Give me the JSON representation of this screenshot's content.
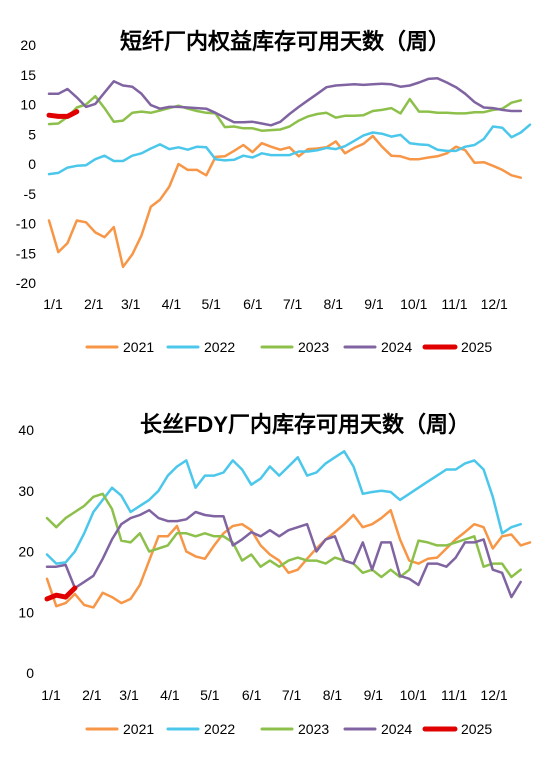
{
  "chart_data": [
    {
      "type": "line",
      "title": "短纤厂内权益库存可用天数（周）",
      "xlabel": "",
      "ylabel": "",
      "x_range": [
        0,
        52
      ],
      "ylim": [
        -20,
        20
      ],
      "yticks": [
        20,
        15,
        10,
        5,
        0,
        -5,
        -10,
        -15,
        -20
      ],
      "xticks": [
        {
          "label": "1/1",
          "x": 0
        },
        {
          "label": "2/1",
          "x": 4.4
        },
        {
          "label": "3/1",
          "x": 8.4
        },
        {
          "label": "4/1",
          "x": 12.8
        },
        {
          "label": "5/1",
          "x": 17.1
        },
        {
          "label": "6/1",
          "x": 21.6
        },
        {
          "label": "7/1",
          "x": 25.9
        },
        {
          "label": "8/1",
          "x": 30.3
        },
        {
          "label": "9/1",
          "x": 34.7
        },
        {
          "label": "10/1",
          "x": 39.0
        },
        {
          "label": "11/1",
          "x": 43.4
        },
        {
          "label": "12/1",
          "x": 47.7
        }
      ],
      "grid": false,
      "legend": "bottom",
      "series": [
        {
          "name": "2021",
          "color": "#F79646",
          "width": 2.5,
          "values": [
            -9.5,
            -14.8,
            -13.3,
            -9.5,
            -9.8,
            -11.5,
            -12.3,
            -10.6,
            -17.3,
            -15.2,
            -12,
            -7.2,
            -6,
            -3.8,
            0,
            -1,
            -1,
            -1.9,
            1.2,
            1.3,
            2.2,
            3.2,
            2,
            3.5,
            2.9,
            2.4,
            2.8,
            1.3,
            2.5,
            2.6,
            2.8,
            3.8,
            1.8,
            2.7,
            3.4,
            4.7,
            2.9,
            1.4,
            1.3,
            0.8,
            0.8,
            1.1,
            1.3,
            1.8,
            2.9,
            2.3,
            0.2,
            0.3,
            -0.3,
            -1,
            -1.9,
            -2.3
          ]
        },
        {
          "name": "2022",
          "color": "#4BC7EB",
          "width": 2.5,
          "values": [
            -1.7,
            -1.5,
            -0.6,
            -0.3,
            -0.2,
            0.8,
            1.4,
            0.5,
            0.5,
            1.4,
            1.8,
            2.6,
            3.3,
            2.5,
            2.8,
            2.4,
            2.9,
            2.8,
            0.8,
            0.6,
            0.7,
            1.4,
            1.1,
            1.8,
            1.5,
            1.5,
            1.5,
            2.1,
            2.1,
            2.3,
            2.7,
            2.5,
            3,
            3.9,
            4.8,
            5.3,
            5.1,
            4.6,
            4.9,
            3.5,
            3.3,
            3.2,
            2.4,
            2.2,
            2.2,
            2.9,
            3.2,
            4.2,
            6.3,
            6.1,
            4.5,
            5.3,
            6.6
          ]
        },
        {
          "name": "2023",
          "color": "#8DC04B",
          "width": 2.5,
          "values": [
            6.7,
            6.8,
            7.9,
            9.5,
            10,
            11.4,
            9.4,
            7.1,
            7.3,
            8.6,
            8.8,
            8.6,
            9,
            9.4,
            9.8,
            9.3,
            8.9,
            8.6,
            8.5,
            6.2,
            6.3,
            6,
            6,
            5.6,
            5.7,
            5.8,
            6.3,
            7.3,
            8,
            8.4,
            8.6,
            7.8,
            8.1,
            8.1,
            8.2,
            8.9,
            9.1,
            9.4,
            8.5,
            10.9,
            8.8,
            8.8,
            8.6,
            8.6,
            8.5,
            8.5,
            8.7,
            8.7,
            9.1,
            9.3,
            10.3,
            10.7
          ]
        },
        {
          "name": "2024",
          "color": "#8064A2",
          "width": 2.5,
          "values": [
            11.8,
            11.8,
            12.6,
            11.2,
            9.6,
            10.1,
            12,
            13.9,
            13.2,
            13,
            11.8,
            9.9,
            9.3,
            9.6,
            9.6,
            9.5,
            9.4,
            9.3,
            8.6,
            7.8,
            7,
            7,
            7.1,
            6.8,
            6.5,
            7.1,
            8.4,
            9.6,
            10.7,
            11.8,
            12.9,
            13.2,
            13.3,
            13.4,
            13.3,
            13.4,
            13.5,
            13.4,
            13,
            13.2,
            13.7,
            14.3,
            14.4,
            13.7,
            12.9,
            11.8,
            10.4,
            9.5,
            9.4,
            9.1,
            8.9,
            8.9
          ]
        },
        {
          "name": "2025",
          "color": "#E00000",
          "width": 5,
          "values": [
            8.2,
            8,
            8,
            8.8
          ]
        }
      ]
    },
    {
      "type": "line",
      "title": "长丝FDY厂内库存可用天数（周）",
      "xlabel": "",
      "ylabel": "",
      "x_range": [
        0,
        52
      ],
      "ylim": [
        0,
        40
      ],
      "yticks": [
        40,
        30,
        20,
        10,
        0
      ],
      "xticks": [
        {
          "label": "1/1",
          "x": 0
        },
        {
          "label": "2/1",
          "x": 4.4
        },
        {
          "label": "3/1",
          "x": 8.4
        },
        {
          "label": "4/1",
          "x": 12.8
        },
        {
          "label": "5/1",
          "x": 17.1
        },
        {
          "label": "6/1",
          "x": 21.6
        },
        {
          "label": "7/1",
          "x": 25.9
        },
        {
          "label": "8/1",
          "x": 30.3
        },
        {
          "label": "9/1",
          "x": 34.7
        },
        {
          "label": "10/1",
          "x": 39.0
        },
        {
          "label": "11/1",
          "x": 43.4
        },
        {
          "label": "12/1",
          "x": 47.7
        }
      ],
      "grid": false,
      "legend": "bottom",
      "series": [
        {
          "name": "2021",
          "color": "#F79646",
          "width": 2.5,
          "values": [
            15.5,
            11,
            11.5,
            13,
            11.2,
            10.8,
            13.2,
            12.5,
            11.5,
            12.2,
            14.5,
            18.5,
            22.5,
            22.5,
            24.2,
            20,
            19.2,
            18.8,
            21,
            23,
            24.2,
            24.5,
            23.5,
            21,
            19.5,
            18.5,
            16.5,
            17,
            18.8,
            20.5,
            22,
            23.2,
            24.5,
            26,
            24,
            24.5,
            25.5,
            26.8,
            22,
            18.5,
            18,
            18.8,
            19,
            20.5,
            22,
            23.2,
            24.5,
            24,
            20.5,
            22.5,
            22.8,
            21,
            21.5
          ]
        },
        {
          "name": "2022",
          "color": "#4BC7EB",
          "width": 2.5,
          "values": [
            19.5,
            18,
            18.2,
            20,
            23,
            26.5,
            28.5,
            30.5,
            29.2,
            26.5,
            27.5,
            28.5,
            30,
            32.5,
            34,
            35,
            30.5,
            32.5,
            32.5,
            33,
            35,
            33.5,
            31,
            32,
            34,
            32.5,
            34,
            35.5,
            32.5,
            33,
            34.5,
            35.5,
            36.5,
            34,
            29.5,
            29.8,
            30,
            29.8,
            28.5,
            29.5,
            30.5,
            31.5,
            32.5,
            33.5,
            33.5,
            34.5,
            35,
            33.5,
            29,
            23,
            24,
            24.5
          ]
        },
        {
          "name": "2023",
          "color": "#8DC04B",
          "width": 2.5,
          "values": [
            25.5,
            24,
            25.5,
            26.5,
            27.5,
            29,
            29.5,
            27,
            21.8,
            21.5,
            23,
            20,
            20.5,
            21,
            23,
            23,
            22.5,
            23,
            22.5,
            22.5,
            21.5,
            18.5,
            19.5,
            17.5,
            18.5,
            17.5,
            18.5,
            19,
            18.5,
            18.5,
            18,
            19,
            18.5,
            18,
            16.5,
            17,
            15.8,
            17,
            15.8,
            17,
            21.8,
            21.5,
            21,
            21,
            21.5,
            22,
            22.5,
            17.5,
            18,
            18,
            15.8,
            17
          ]
        },
        {
          "name": "2024",
          "color": "#8064A2",
          "width": 2.5,
          "values": [
            17.5,
            17.5,
            17.8,
            14,
            15,
            16,
            18.8,
            22,
            24.5,
            25.5,
            26,
            26.8,
            25.5,
            25,
            25,
            25.3,
            26.5,
            26,
            25.8,
            25.8,
            21,
            22,
            23.2,
            22.5,
            23.5,
            22.5,
            23.5,
            24,
            24.5,
            20,
            22,
            22.5,
            18.5,
            18,
            21.5,
            17,
            21.5,
            21.5,
            16,
            15.5,
            14.5,
            18,
            18,
            17.5,
            19,
            21.5,
            21.5,
            22,
            17,
            16.5,
            12.5,
            15
          ]
        },
        {
          "name": "2025",
          "color": "#E00000",
          "width": 5,
          "values": [
            12.2,
            12.8,
            12.5,
            14
          ]
        }
      ]
    }
  ]
}
